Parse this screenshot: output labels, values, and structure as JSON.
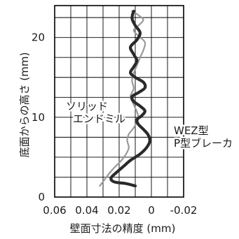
{
  "chart_data": {
    "type": "line",
    "title": "",
    "xlabel": "壁面寸法の精度 (mm)",
    "ylabel": "底面からの高さ (mm)",
    "xlim": [
      0.06,
      -0.02
    ],
    "ylim": [
      0,
      24
    ],
    "x_ticks": [
      0.06,
      0.04,
      0.02,
      0,
      -0.02
    ],
    "x_tick_labels": [
      "0.06",
      "0.04",
      "0.02",
      "0",
      "-0.02"
    ],
    "y_ticks": [
      0,
      10,
      20
    ],
    "y_tick_labels": [
      "0",
      "10",
      "20"
    ],
    "grid": true,
    "series": [
      {
        "name": "ソリッド エンドミル",
        "label_lines": [
          "ソリッド",
          "エンドミル"
        ],
        "color": "#999999",
        "points": [
          [
            0.012,
            23.3
          ],
          [
            0.008,
            22.8
          ],
          [
            0.005,
            22.2
          ],
          [
            0.008,
            21.5
          ],
          [
            0.011,
            20.9
          ],
          [
            0.008,
            20.2
          ],
          [
            0.004,
            19.4
          ],
          [
            0.005,
            18.4
          ],
          [
            0.007,
            17.5
          ],
          [
            0.009,
            16.5
          ],
          [
            0.011,
            15.5
          ],
          [
            0.012,
            14.6
          ],
          [
            0.011,
            13.6
          ],
          [
            0.013,
            12.6
          ],
          [
            0.011,
            11.6
          ],
          [
            0.009,
            10.7
          ],
          [
            0.008,
            9.8
          ],
          [
            0.01,
            9.0
          ],
          [
            0.012,
            8.4
          ],
          [
            0.014,
            7.9
          ],
          [
            0.015,
            7.1
          ],
          [
            0.014,
            6.2
          ],
          [
            0.016,
            5.3
          ],
          [
            0.019,
            4.5
          ],
          [
            0.023,
            3.7
          ],
          [
            0.026,
            3.0
          ],
          [
            0.029,
            2.2
          ],
          [
            0.032,
            1.4
          ]
        ]
      },
      {
        "name": "WEZ型 P型ブレーカ",
        "label_lines": [
          "WEZ型",
          "P型ブレーカ"
        ],
        "color": "#2a2a2a",
        "points": [
          [
            0.011,
            23.3
          ],
          [
            0.012,
            22.4
          ],
          [
            0.01,
            21.5
          ],
          [
            0.007,
            20.6
          ],
          [
            0.009,
            19.7
          ],
          [
            0.013,
            18.8
          ],
          [
            0.011,
            17.9
          ],
          [
            0.009,
            17.1
          ],
          [
            0.011,
            16.3
          ],
          [
            0.013,
            15.6
          ],
          [
            0.01,
            15.0
          ],
          [
            0.005,
            14.4
          ],
          [
            0.004,
            13.7
          ],
          [
            0.008,
            13.1
          ],
          [
            0.012,
            12.6
          ],
          [
            0.011,
            12.0
          ],
          [
            0.007,
            11.4
          ],
          [
            0.004,
            10.8
          ],
          [
            0.006,
            10.2
          ],
          [
            0.009,
            9.7
          ],
          [
            0.008,
            9.1
          ],
          [
            0.005,
            8.5
          ],
          [
            0.002,
            7.8
          ],
          [
            0.001,
            7.0
          ],
          [
            0.003,
            6.2
          ],
          [
            0.007,
            5.4
          ],
          [
            0.013,
            4.6
          ],
          [
            0.017,
            3.9
          ],
          [
            0.021,
            3.2
          ],
          [
            0.025,
            2.4
          ],
          [
            0.023,
            1.9
          ],
          [
            0.016,
            1.7
          ],
          [
            0.01,
            1.4
          ]
        ]
      }
    ]
  }
}
